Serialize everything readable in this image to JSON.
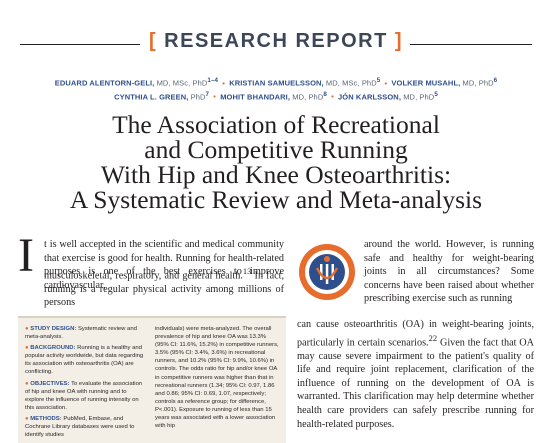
{
  "header": {
    "bracket_left": "[",
    "section": "RESEARCH REPORT",
    "bracket_right": "]"
  },
  "authors": {
    "line1": [
      {
        "name": "EDUARD ALENTORN-GELI,",
        "deg": "MD, MSc, PhD"
      },
      {
        "name": "KRISTIAN SAMUELSSON,",
        "deg": "MD, MSc, PhD"
      },
      {
        "name": "VOLKER MUSAHL,",
        "deg": "MD, PhD"
      }
    ],
    "line2": [
      {
        "name": "CYNTHIA L. GREEN,",
        "deg": "PhD"
      },
      {
        "name": "MOHIT BHANDARI,",
        "deg": "MD, PhD"
      },
      {
        "name": "JÓN KARLSSON,",
        "deg": "MD, PhD"
      }
    ],
    "separator": "•"
  },
  "title": {
    "line1": "The Association of Recreational",
    "line2": "and Competitive Running",
    "line3": "With Hip and Knee Osteoarthritis:",
    "line4": "A Systematic Review and Meta-analysis"
  },
  "body": {
    "dropcap": "I",
    "lead": "t is well accepted in the scientific and medical community that exercise is good for health. Running for health-related purposes is one of the best exercises to improve cardiovascular,",
    "lead_tail_1": "musculoskeletal, respiratory, and general health.",
    "lead_tail_2": " In fact, running is a regular physical activity among millions of persons",
    "lead_tail_sup": "13",
    "right_col": "around the world. However, is running safe and healthy for weight-bearing joints in all circumstances? Some concerns have been raised about whether prescribing exercise such as running",
    "right_col2_a": "can cause osteoarthritis (OA) in weight-bearing joints, particularly in certain scenarios.",
    "right_col2_sup": "22",
    "right_col2_b": " Given the fact that OA may cause severe impairment to the patient's quality of life and require joint replacement, clarification of the influence of running on the development of OA is warranted. This clarification may help determine whether health care providers can safely prescribe running for health-related purposes."
  },
  "abstract": {
    "study_design_label": "STUDY DESIGN:",
    "study_design": " Systematic review and meta-analysis.",
    "background_label": "BACKGROUND:",
    "background": " Running is a healthy and popular activity worldwide, but data regarding its association with osteoarthritis (OA) are conflicting.",
    "objectives_label": "OBJECTIVES:",
    "objectives": " To evaluate the association of hip and knee OA with running and to explore the influence of running intensity on this association.",
    "methods_label": "METHODS:",
    "methods": " PubMed, Embase, and Cochrane Library databases were used to identify studies",
    "col2": "individuals) were meta-analyzed. The overall prevalence of hip and knee OA was 13.3% (95% CI: 11.6%, 15.2%) in competitive runners, 3.5% (95% CI: 3.4%, 3.6%) in recreational runners, and 10.2% (95% CI: 9.9%, 10.6%) in controls. The odds ratio for hip and/or knee OA in competitive runners was higher than that in recreational runners (1.34; 95% CI: 0.97, 1.86 and 0.86; 95% CI: 0.69, 1.07, respectively; controls as reference group; for difference, P<.001). Exposure to running of less than 15 years was associated with a lower association with hip"
  },
  "colors": {
    "orange": "#e66d2b",
    "blue": "#2f4e8c",
    "slate": "#3d4656",
    "box": "#f3efe6"
  },
  "icons": {
    "logo": "running-figure-logo-icon"
  }
}
